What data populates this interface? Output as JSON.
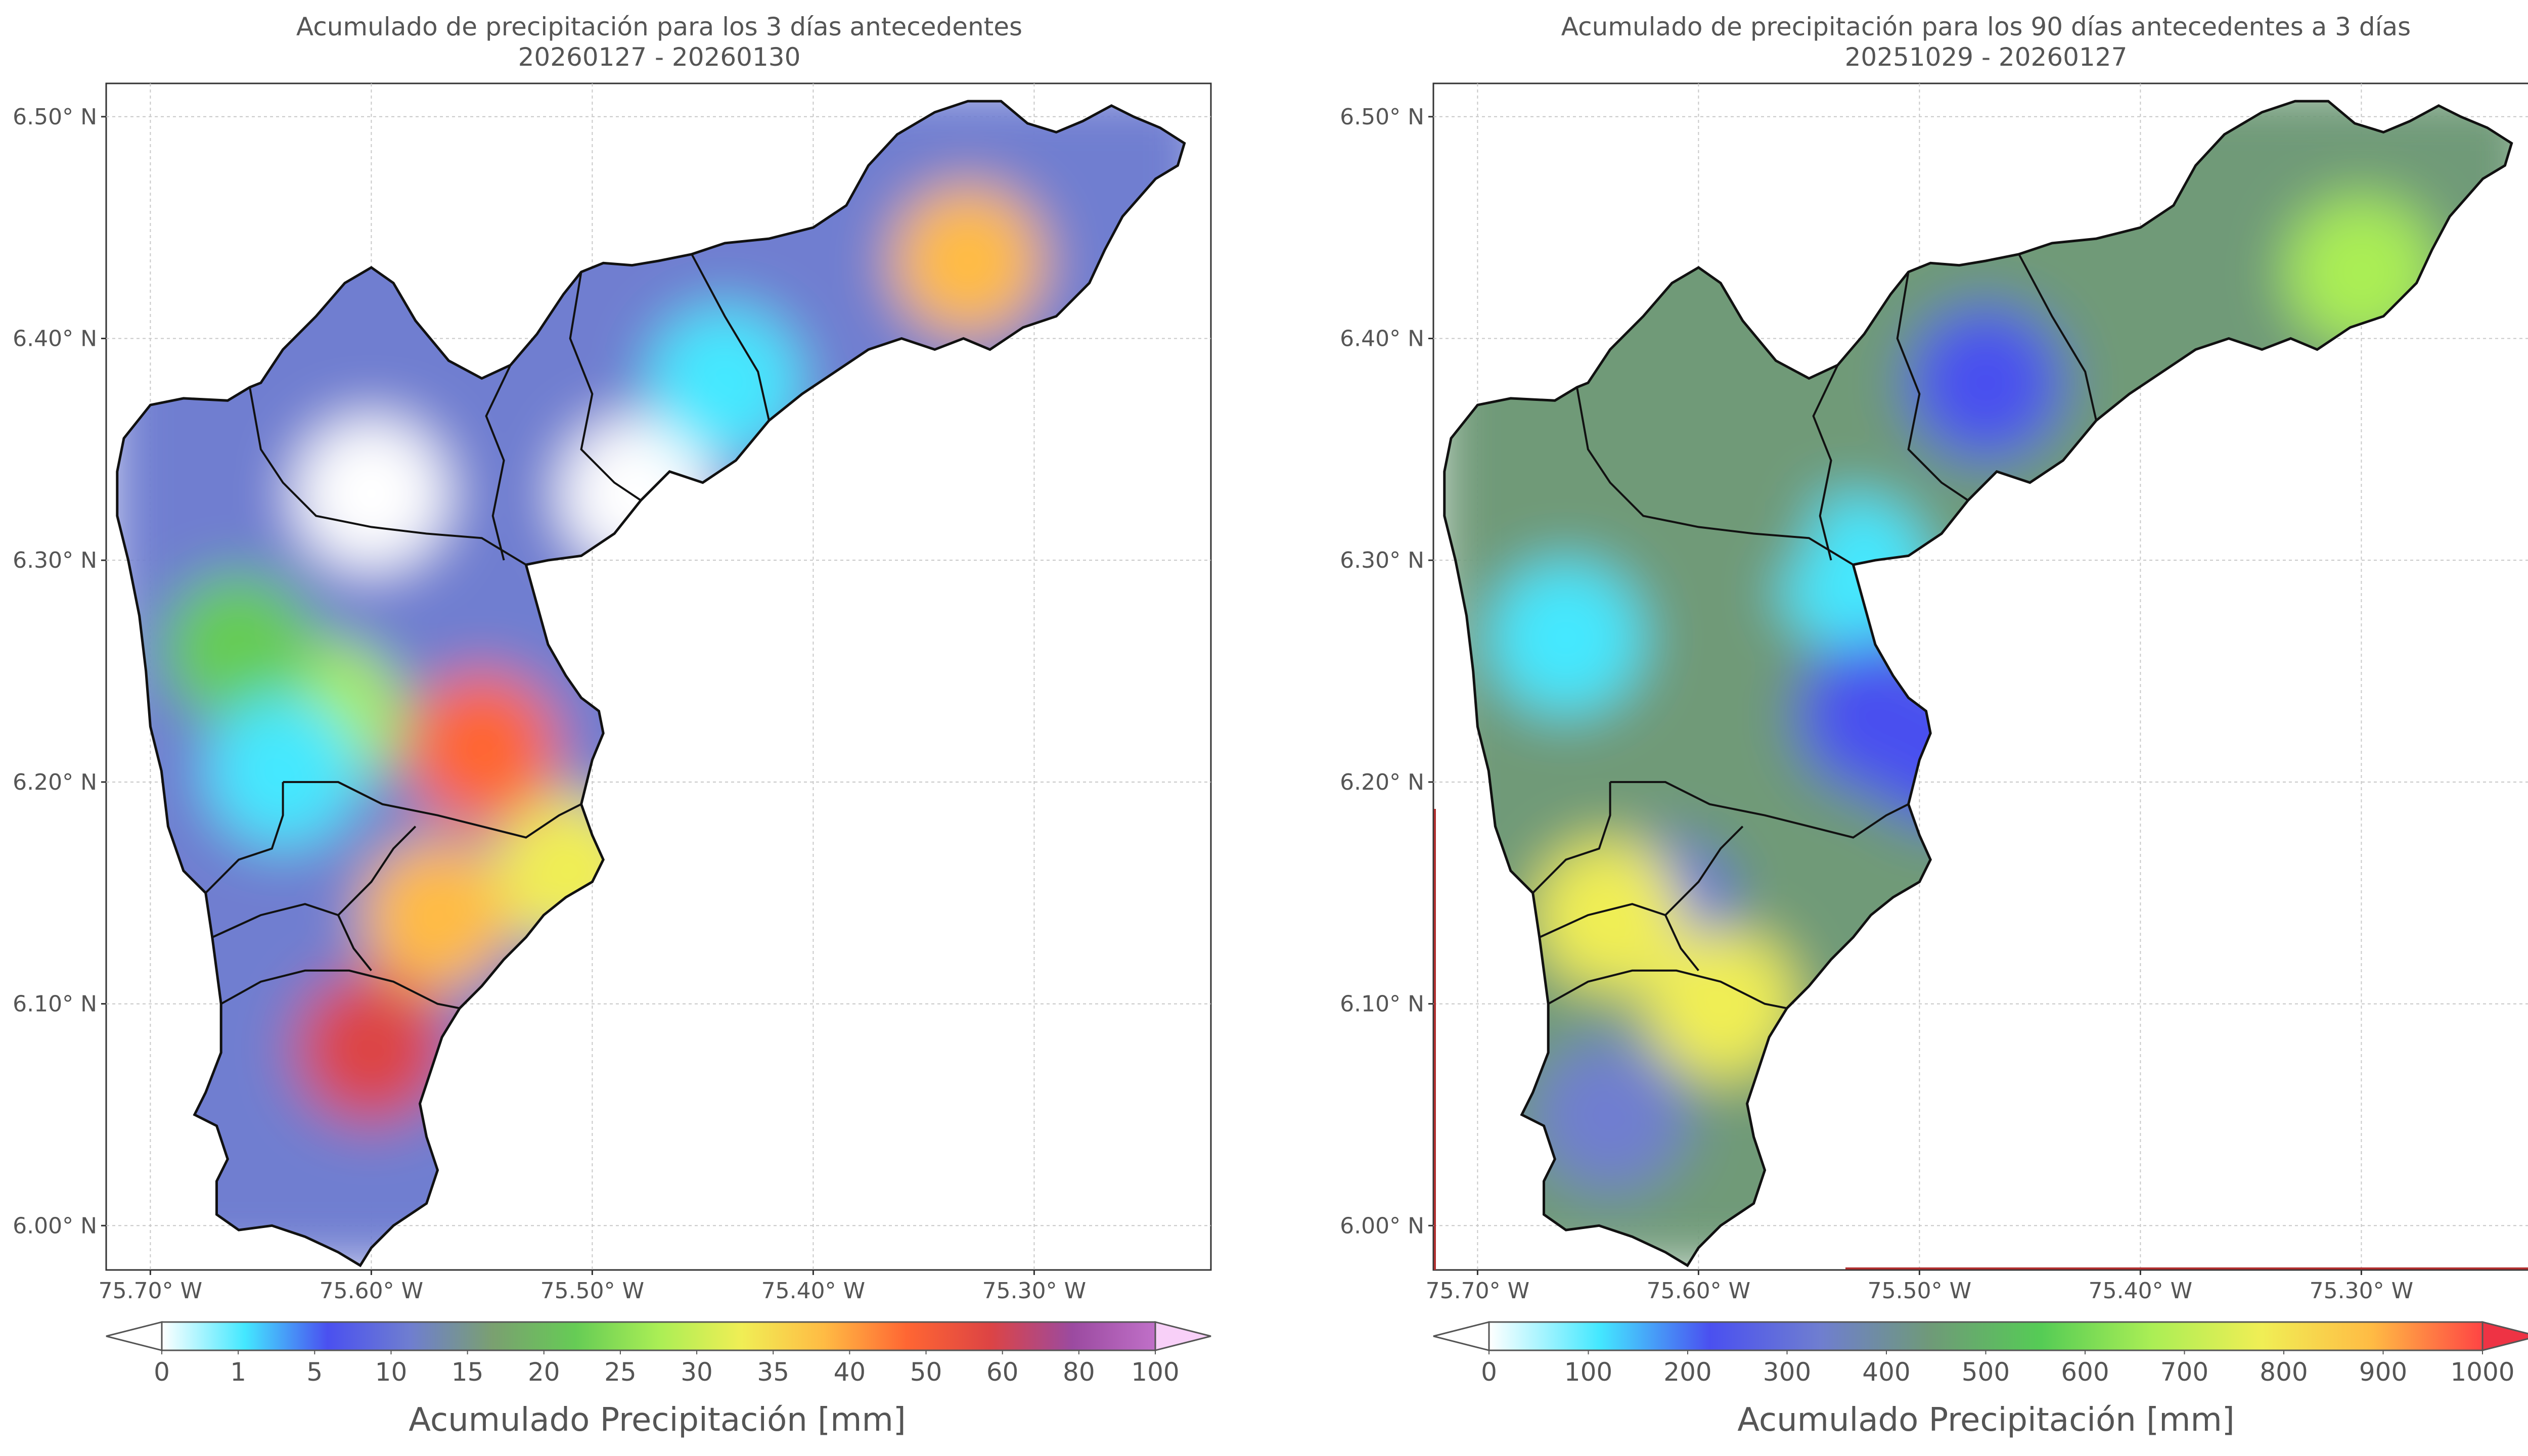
{
  "chart_data": [
    {
      "type": "heatmap",
      "title": "Acumulado de precipitación para los 3 días antecedentes",
      "subtitle": "20260127 - 20260130",
      "xticks": [
        "75.70° W",
        "75.60° W",
        "75.50° W",
        "75.40° W",
        "75.30° W"
      ],
      "xtick_values": [
        -75.7,
        -75.6,
        -75.5,
        -75.4,
        -75.3
      ],
      "yticks": [
        "6.50° N",
        "6.40° N",
        "6.30° N",
        "6.20° N",
        "6.10° N",
        "6.00° N"
      ],
      "ytick_values": [
        6.5,
        6.4,
        6.3,
        6.2,
        6.1,
        6.0
      ],
      "xlim": [
        -75.72,
        -75.22
      ],
      "ylim": [
        5.98,
        6.515
      ],
      "colorbar": {
        "label": "Acumulado Precipitación [mm]",
        "ticks": [
          "0",
          "1",
          "5",
          "10",
          "15",
          "20",
          "25",
          "30",
          "35",
          "40",
          "50",
          "60",
          "80",
          "100"
        ],
        "levels": [
          0,
          1,
          5,
          10,
          15,
          20,
          25,
          30,
          35,
          40,
          50,
          60,
          80,
          100
        ],
        "colors": [
          "#ffffff",
          "#ffffff",
          "#44e8ff",
          "#4a50f0",
          "#6f7ed0",
          "#7aa070",
          "#66cc55",
          "#aaee55",
          "#f0ee55",
          "#ffbb44",
          "#ff6633",
          "#dd4444",
          "#9b4aa0",
          "#c070c8",
          "#f8d0f8"
        ],
        "extend": "both"
      },
      "hotspots": [
        {
          "lon": -75.33,
          "lat": 6.435,
          "value": 40
        },
        {
          "lon": -75.6,
          "lat": 6.08,
          "value": 52
        },
        {
          "lon": -75.55,
          "lat": 6.215,
          "value": 48
        },
        {
          "lon": -75.57,
          "lat": 6.14,
          "value": 38
        },
        {
          "lon": -75.62,
          "lat": 6.23,
          "value": 30
        },
        {
          "lon": -75.51,
          "lat": 6.16,
          "value": 33
        },
        {
          "lon": -75.66,
          "lat": 6.26,
          "value": 24
        },
        {
          "lon": -75.64,
          "lat": 6.205,
          "value": 5
        },
        {
          "lon": -75.6,
          "lat": 6.33,
          "value": 1
        },
        {
          "lon": -75.48,
          "lat": 6.33,
          "value": 0
        },
        {
          "lon": -75.44,
          "lat": 6.38,
          "value": 4
        }
      ]
    },
    {
      "type": "heatmap",
      "title": "Acumulado de precipitación para los 90 días antecedentes a 3 días",
      "subtitle": "20251029 - 20260127",
      "xticks": [
        "75.70° W",
        "75.60° W",
        "75.50° W",
        "75.40° W",
        "75.30° W"
      ],
      "xtick_values": [
        -75.7,
        -75.6,
        -75.5,
        -75.4,
        -75.3
      ],
      "yticks": [
        "6.50° N",
        "6.40° N",
        "6.30° N",
        "6.20° N",
        "6.10° N",
        "6.00° N"
      ],
      "ytick_values": [
        6.5,
        6.4,
        6.3,
        6.2,
        6.1,
        6.0
      ],
      "xlim": [
        -75.72,
        -75.22
      ],
      "ylim": [
        5.98,
        6.515
      ],
      "colorbar": {
        "label": "Acumulado Precipitación [mm]",
        "ticks": [
          "0",
          "100",
          "200",
          "300",
          "400",
          "500",
          "600",
          "700",
          "800",
          "900",
          "1000"
        ],
        "levels": [
          0,
          100,
          200,
          300,
          400,
          500,
          600,
          700,
          800,
          900,
          1000
        ],
        "colors": [
          "#ffffff",
          "#ffffff",
          "#44e8ff",
          "#4a50f0",
          "#6f7ed0",
          "#6f9a78",
          "#55cc55",
          "#aaee55",
          "#f0ee55",
          "#ffbb44",
          "#ff4444",
          "#ee3344"
        ],
        "extend": "both"
      },
      "hotspots": [
        {
          "lon": -75.66,
          "lat": 6.265,
          "value": 150
        },
        {
          "lon": -75.53,
          "lat": 6.295,
          "value": 180
        },
        {
          "lon": -75.52,
          "lat": 6.23,
          "value": 220
        },
        {
          "lon": -75.49,
          "lat": 6.215,
          "value": 220
        },
        {
          "lon": -75.47,
          "lat": 6.38,
          "value": 260
        },
        {
          "lon": -75.62,
          "lat": 6.14,
          "value": 250
        },
        {
          "lon": -75.64,
          "lat": 6.14,
          "value": 750
        },
        {
          "lon": -75.59,
          "lat": 6.1,
          "value": 760
        },
        {
          "lon": -75.3,
          "lat": 6.43,
          "value": 700
        },
        {
          "lon": -75.64,
          "lat": 6.05,
          "value": 380
        },
        {
          "lon": -75.58,
          "lat": 6.32,
          "value": 410
        }
      ]
    }
  ]
}
